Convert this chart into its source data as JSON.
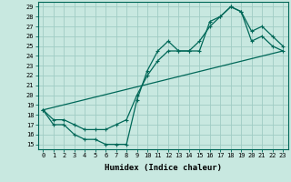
{
  "title": "",
  "xlabel": "Humidex (Indice chaleur)",
  "xlim": [
    -0.5,
    23.5
  ],
  "ylim": [
    14.5,
    29.5
  ],
  "xticks": [
    0,
    1,
    2,
    3,
    4,
    5,
    6,
    7,
    8,
    9,
    10,
    11,
    12,
    13,
    14,
    15,
    16,
    17,
    18,
    19,
    20,
    21,
    22,
    23
  ],
  "yticks": [
    15,
    16,
    17,
    18,
    19,
    20,
    21,
    22,
    23,
    24,
    25,
    26,
    27,
    28,
    29
  ],
  "background_color": "#c8e8e0",
  "grid_color": "#a0ccc4",
  "line_color": "#006858",
  "line1_x": [
    0,
    1,
    2,
    3,
    4,
    5,
    6,
    7,
    8,
    9,
    10,
    11,
    12,
    13,
    14,
    15,
    16,
    17,
    18,
    19,
    20,
    21,
    22,
    23
  ],
  "line1_y": [
    18.5,
    17,
    17,
    16,
    15.5,
    15.5,
    15,
    15,
    15,
    19.5,
    22.5,
    24.5,
    25.5,
    24.5,
    24.5,
    24.5,
    27.5,
    28,
    29,
    28.5,
    25.5,
    26,
    25,
    24.5
  ],
  "line2_x": [
    0,
    1,
    2,
    3,
    4,
    5,
    6,
    7,
    8,
    9,
    10,
    11,
    12,
    13,
    14,
    15,
    16,
    17,
    18,
    19,
    20,
    21,
    22,
    23
  ],
  "line2_y": [
    18.5,
    17.5,
    17.5,
    17,
    16.5,
    16.5,
    16.5,
    17,
    17.5,
    20,
    22,
    23.5,
    24.5,
    24.5,
    24.5,
    25.5,
    27,
    28,
    29,
    28.5,
    26.5,
    27,
    26,
    25
  ],
  "line3_x": [
    0,
    23
  ],
  "line3_y": [
    18.5,
    24.5
  ]
}
